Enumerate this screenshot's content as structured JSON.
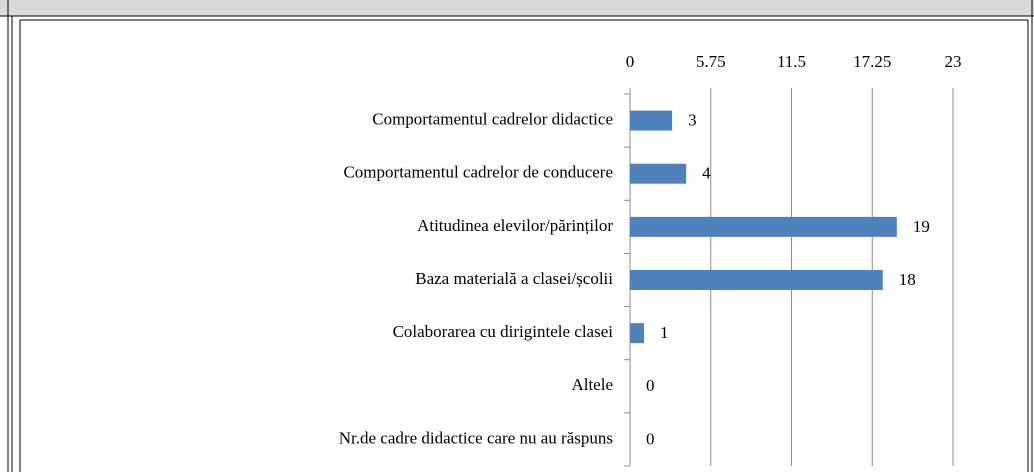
{
  "chart_data": {
    "type": "bar",
    "orientation": "horizontal",
    "categories": [
      "Comportamentul cadrelor didactice",
      "Comportamentul cadrelor de conducere",
      "Atitudinea elevilor/părinților",
      "Baza materială a clasei/școlii",
      "Colaborarea cu dirigintele clasei",
      "Altele",
      "Nr.de cadre didactice care nu au răspuns"
    ],
    "values": [
      3,
      4,
      19,
      18,
      1,
      0,
      0
    ],
    "color": "#4f81bd",
    "xlim": [
      0,
      23
    ],
    "xticks": [
      0,
      5.75,
      11.5,
      17.25,
      23
    ],
    "grid": true
  }
}
